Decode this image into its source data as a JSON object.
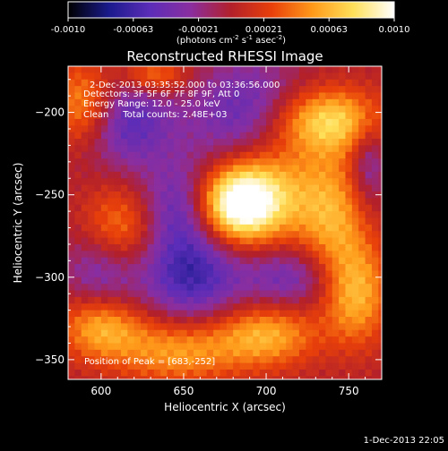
{
  "colorbar": {
    "ticks": [
      "-0.0010",
      "-0.00063",
      "-0.00021",
      "0.00021",
      "0.00063",
      "0.0010"
    ],
    "units_label": "(photons cm",
    "units_exp1": "-2",
    "units_mid": " s",
    "units_exp2": "-1",
    "units_mid2": " asec",
    "units_exp3": "-2",
    "units_end": ")"
  },
  "chart_data": {
    "type": "heatmap",
    "title": "Reconstructed RHESSI Image",
    "xlabel": "Heliocentric X (arcsec)",
    "ylabel": "Heliocentric Y (arcsec)",
    "xlim": [
      580,
      770
    ],
    "ylim": [
      -362,
      -172
    ],
    "x_ticks": [
      600,
      650,
      700,
      750
    ],
    "y_ticks": [
      -200,
      -250,
      -300,
      -350
    ],
    "x_tick_labels": [
      "600",
      "650",
      "700",
      "750"
    ],
    "y_tick_labels": [
      "−200",
      "−250",
      "−300",
      "−350"
    ],
    "colorscale": [
      "#000000",
      "#1a1a8c",
      "#5b2db8",
      "#8a2ea0",
      "#b3202a",
      "#e8400a",
      "#ff9a1a",
      "#ffe05a",
      "#ffffff"
    ],
    "value_range": [
      -0.001,
      0.001
    ],
    "annotations": [
      "2-Dec-2013 03:35:52.000 to 03:36:56.000",
      "Detectors: 3F 5F 6F 7F 8F 9F, Att 0",
      "Energy Range: 12.0 - 25.0 keV",
      "Clean     Total counts: 2.48E+03"
    ],
    "peak_label": "Position of Peak = [683,-252]",
    "peak": {
      "x": 683,
      "y": -252
    },
    "hot_spots": [
      {
        "x": 681,
        "y": -256,
        "sx": 18,
        "sy": 16,
        "amp": 1.0
      },
      {
        "x": 700,
        "y": -243,
        "sx": 22,
        "sy": 24,
        "amp": 0.55
      },
      {
        "x": 737,
        "y": -205,
        "sx": 26,
        "sy": 14,
        "amp": 0.7
      },
      {
        "x": 590,
        "y": -195,
        "sx": 14,
        "sy": 18,
        "amp": 0.55
      },
      {
        "x": 632,
        "y": -178,
        "sx": 14,
        "sy": 8,
        "amp": 0.45
      },
      {
        "x": 755,
        "y": -310,
        "sx": 14,
        "sy": 22,
        "amp": 0.55
      },
      {
        "x": 700,
        "y": -335,
        "sx": 22,
        "sy": 14,
        "amp": 0.55
      },
      {
        "x": 646,
        "y": -345,
        "sx": 26,
        "sy": 14,
        "amp": 0.5
      },
      {
        "x": 600,
        "y": -330,
        "sx": 18,
        "sy": 14,
        "amp": 0.55
      },
      {
        "x": 612,
        "y": -270,
        "sx": 16,
        "sy": 18,
        "amp": 0.45
      },
      {
        "x": 740,
        "y": -262,
        "sx": 16,
        "sy": 28,
        "amp": 0.5
      }
    ],
    "cold_spots": [
      {
        "x": 615,
        "y": -205,
        "sx": 20,
        "sy": 20,
        "amp": 0.5
      },
      {
        "x": 690,
        "y": -205,
        "sx": 24,
        "sy": 24,
        "amp": 0.55
      },
      {
        "x": 650,
        "y": -258,
        "sx": 18,
        "sy": 20,
        "amp": 0.5
      },
      {
        "x": 655,
        "y": -300,
        "sx": 22,
        "sy": 20,
        "amp": 0.55
      },
      {
        "x": 600,
        "y": -297,
        "sx": 16,
        "sy": 18,
        "amp": 0.35
      },
      {
        "x": 715,
        "y": -300,
        "sx": 20,
        "sy": 14,
        "amp": 0.4
      },
      {
        "x": 762,
        "y": -230,
        "sx": 8,
        "sy": 20,
        "amp": 0.35
      }
    ]
  },
  "footer": {
    "timestamp": "1-Dec-2013 22:05"
  }
}
